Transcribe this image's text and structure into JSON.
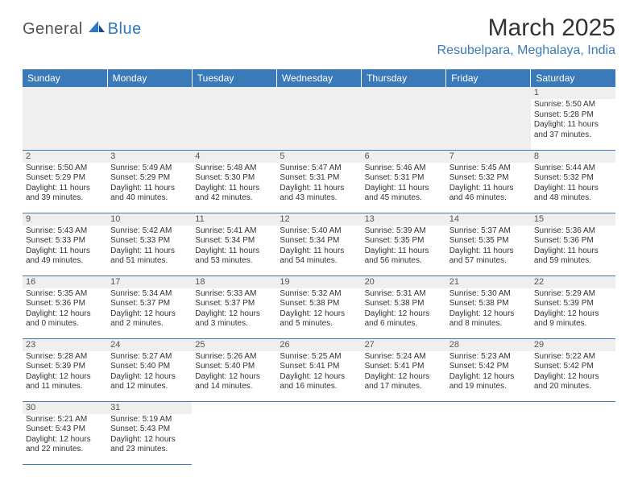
{
  "logo": {
    "text1": "General",
    "text2": "Blue"
  },
  "title": "March 2025",
  "location": "Resubelpara, Meghalaya, India",
  "columns": [
    "Sunday",
    "Monday",
    "Tuesday",
    "Wednesday",
    "Thursday",
    "Friday",
    "Saturday"
  ],
  "colors": {
    "header_bg": "#3a7ab8",
    "header_text": "#ffffff",
    "daynum_bg": "#efefef",
    "border": "#3a7ab8",
    "location_text": "#3a7ab8",
    "title_text": "#333333",
    "body_text": "#333333"
  },
  "weeks": [
    [
      null,
      null,
      null,
      null,
      null,
      null,
      {
        "n": "1",
        "sr": "Sunrise: 5:50 AM",
        "ss": "Sunset: 5:28 PM",
        "d1": "Daylight: 11 hours",
        "d2": "and 37 minutes."
      }
    ],
    [
      {
        "n": "2",
        "sr": "Sunrise: 5:50 AM",
        "ss": "Sunset: 5:29 PM",
        "d1": "Daylight: 11 hours",
        "d2": "and 39 minutes."
      },
      {
        "n": "3",
        "sr": "Sunrise: 5:49 AM",
        "ss": "Sunset: 5:29 PM",
        "d1": "Daylight: 11 hours",
        "d2": "and 40 minutes."
      },
      {
        "n": "4",
        "sr": "Sunrise: 5:48 AM",
        "ss": "Sunset: 5:30 PM",
        "d1": "Daylight: 11 hours",
        "d2": "and 42 minutes."
      },
      {
        "n": "5",
        "sr": "Sunrise: 5:47 AM",
        "ss": "Sunset: 5:31 PM",
        "d1": "Daylight: 11 hours",
        "d2": "and 43 minutes."
      },
      {
        "n": "6",
        "sr": "Sunrise: 5:46 AM",
        "ss": "Sunset: 5:31 PM",
        "d1": "Daylight: 11 hours",
        "d2": "and 45 minutes."
      },
      {
        "n": "7",
        "sr": "Sunrise: 5:45 AM",
        "ss": "Sunset: 5:32 PM",
        "d1": "Daylight: 11 hours",
        "d2": "and 46 minutes."
      },
      {
        "n": "8",
        "sr": "Sunrise: 5:44 AM",
        "ss": "Sunset: 5:32 PM",
        "d1": "Daylight: 11 hours",
        "d2": "and 48 minutes."
      }
    ],
    [
      {
        "n": "9",
        "sr": "Sunrise: 5:43 AM",
        "ss": "Sunset: 5:33 PM",
        "d1": "Daylight: 11 hours",
        "d2": "and 49 minutes."
      },
      {
        "n": "10",
        "sr": "Sunrise: 5:42 AM",
        "ss": "Sunset: 5:33 PM",
        "d1": "Daylight: 11 hours",
        "d2": "and 51 minutes."
      },
      {
        "n": "11",
        "sr": "Sunrise: 5:41 AM",
        "ss": "Sunset: 5:34 PM",
        "d1": "Daylight: 11 hours",
        "d2": "and 53 minutes."
      },
      {
        "n": "12",
        "sr": "Sunrise: 5:40 AM",
        "ss": "Sunset: 5:34 PM",
        "d1": "Daylight: 11 hours",
        "d2": "and 54 minutes."
      },
      {
        "n": "13",
        "sr": "Sunrise: 5:39 AM",
        "ss": "Sunset: 5:35 PM",
        "d1": "Daylight: 11 hours",
        "d2": "and 56 minutes."
      },
      {
        "n": "14",
        "sr": "Sunrise: 5:37 AM",
        "ss": "Sunset: 5:35 PM",
        "d1": "Daylight: 11 hours",
        "d2": "and 57 minutes."
      },
      {
        "n": "15",
        "sr": "Sunrise: 5:36 AM",
        "ss": "Sunset: 5:36 PM",
        "d1": "Daylight: 11 hours",
        "d2": "and 59 minutes."
      }
    ],
    [
      {
        "n": "16",
        "sr": "Sunrise: 5:35 AM",
        "ss": "Sunset: 5:36 PM",
        "d1": "Daylight: 12 hours",
        "d2": "and 0 minutes."
      },
      {
        "n": "17",
        "sr": "Sunrise: 5:34 AM",
        "ss": "Sunset: 5:37 PM",
        "d1": "Daylight: 12 hours",
        "d2": "and 2 minutes."
      },
      {
        "n": "18",
        "sr": "Sunrise: 5:33 AM",
        "ss": "Sunset: 5:37 PM",
        "d1": "Daylight: 12 hours",
        "d2": "and 3 minutes."
      },
      {
        "n": "19",
        "sr": "Sunrise: 5:32 AM",
        "ss": "Sunset: 5:38 PM",
        "d1": "Daylight: 12 hours",
        "d2": "and 5 minutes."
      },
      {
        "n": "20",
        "sr": "Sunrise: 5:31 AM",
        "ss": "Sunset: 5:38 PM",
        "d1": "Daylight: 12 hours",
        "d2": "and 6 minutes."
      },
      {
        "n": "21",
        "sr": "Sunrise: 5:30 AM",
        "ss": "Sunset: 5:38 PM",
        "d1": "Daylight: 12 hours",
        "d2": "and 8 minutes."
      },
      {
        "n": "22",
        "sr": "Sunrise: 5:29 AM",
        "ss": "Sunset: 5:39 PM",
        "d1": "Daylight: 12 hours",
        "d2": "and 9 minutes."
      }
    ],
    [
      {
        "n": "23",
        "sr": "Sunrise: 5:28 AM",
        "ss": "Sunset: 5:39 PM",
        "d1": "Daylight: 12 hours",
        "d2": "and 11 minutes."
      },
      {
        "n": "24",
        "sr": "Sunrise: 5:27 AM",
        "ss": "Sunset: 5:40 PM",
        "d1": "Daylight: 12 hours",
        "d2": "and 12 minutes."
      },
      {
        "n": "25",
        "sr": "Sunrise: 5:26 AM",
        "ss": "Sunset: 5:40 PM",
        "d1": "Daylight: 12 hours",
        "d2": "and 14 minutes."
      },
      {
        "n": "26",
        "sr": "Sunrise: 5:25 AM",
        "ss": "Sunset: 5:41 PM",
        "d1": "Daylight: 12 hours",
        "d2": "and 16 minutes."
      },
      {
        "n": "27",
        "sr": "Sunrise: 5:24 AM",
        "ss": "Sunset: 5:41 PM",
        "d1": "Daylight: 12 hours",
        "d2": "and 17 minutes."
      },
      {
        "n": "28",
        "sr": "Sunrise: 5:23 AM",
        "ss": "Sunset: 5:42 PM",
        "d1": "Daylight: 12 hours",
        "d2": "and 19 minutes."
      },
      {
        "n": "29",
        "sr": "Sunrise: 5:22 AM",
        "ss": "Sunset: 5:42 PM",
        "d1": "Daylight: 12 hours",
        "d2": "and 20 minutes."
      }
    ],
    [
      {
        "n": "30",
        "sr": "Sunrise: 5:21 AM",
        "ss": "Sunset: 5:43 PM",
        "d1": "Daylight: 12 hours",
        "d2": "and 22 minutes."
      },
      {
        "n": "31",
        "sr": "Sunrise: 5:19 AM",
        "ss": "Sunset: 5:43 PM",
        "d1": "Daylight: 12 hours",
        "d2": "and 23 minutes."
      },
      null,
      null,
      null,
      null,
      null
    ]
  ]
}
